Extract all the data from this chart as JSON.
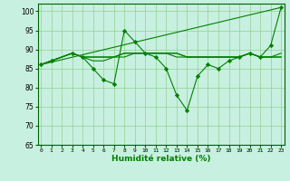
{
  "x": [
    0,
    1,
    2,
    3,
    4,
    5,
    6,
    7,
    8,
    9,
    10,
    11,
    12,
    13,
    14,
    15,
    16,
    17,
    18,
    19,
    20,
    21,
    22,
    23
  ],
  "line_main": [
    86,
    87,
    null,
    89,
    88,
    85,
    82,
    81,
    95,
    92,
    89,
    88,
    85,
    78,
    74,
    83,
    86,
    85,
    87,
    88,
    89,
    88,
    91,
    101
  ],
  "line_flat1": [
    86,
    null,
    null,
    89,
    88,
    88,
    88,
    88,
    88,
    89,
    89,
    89,
    89,
    88,
    88,
    88,
    88,
    88,
    88,
    88,
    89,
    88,
    88,
    88
  ],
  "line_flat2": [
    86,
    null,
    null,
    89,
    88,
    88,
    88,
    88,
    89,
    89,
    89,
    89,
    89,
    89,
    88,
    88,
    88,
    88,
    88,
    88,
    89,
    88,
    88,
    89
  ],
  "line_flat3": [
    86,
    null,
    null,
    89,
    88,
    87,
    87,
    88,
    89,
    89,
    89,
    89,
    89,
    89,
    88,
    88,
    88,
    88,
    88,
    88,
    89,
    88,
    88,
    88
  ],
  "line_diag": [
    86,
    null,
    null,
    null,
    null,
    null,
    null,
    null,
    null,
    null,
    null,
    null,
    null,
    null,
    null,
    null,
    null,
    null,
    null,
    null,
    null,
    null,
    null,
    101
  ],
  "ylim": [
    65,
    102
  ],
  "xlim": [
    -0.3,
    23.3
  ],
  "yticks": [
    65,
    70,
    75,
    80,
    85,
    90,
    95,
    100
  ],
  "xticks": [
    0,
    1,
    2,
    3,
    4,
    5,
    6,
    7,
    8,
    9,
    10,
    11,
    12,
    13,
    14,
    15,
    16,
    17,
    18,
    19,
    20,
    21,
    22,
    23
  ],
  "xlabel": "Humidité relative (%)",
  "line_color": "#008000",
  "bg_color": "#c8f0e0",
  "grid_color": "#90d090",
  "marker": "D",
  "marker_size": 2.2,
  "line_width": 0.8
}
